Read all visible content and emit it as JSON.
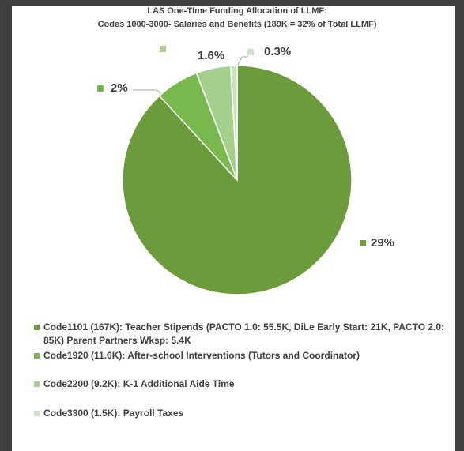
{
  "chart_data": {
    "type": "pie",
    "title": [
      "LAS One-TIme Funding Allocation of LLMF:",
      "Codes 1000-3000- Salaries and Benefits (189K = 32% of Total LLMF)"
    ],
    "categories": [
      "Code1101 (167K): Teacher Stipends (PACTO 1.0: 55.5K, DiLe Early Start: 21K, PACTO 2.0: 85K) Parent Partners Wksp: 5.4K",
      "Code1920 (11.6K): After-school Interventions (Tutors and Coordinator)",
      "Code2200 (9.2K): K-1 Additional Aide Time",
      "Code3300 (1.5K): Payroll Taxes"
    ],
    "values": [
      29,
      2,
      1.6,
      0.3
    ],
    "value_labels": [
      "29%",
      "2%",
      "1.6%",
      "0.3%"
    ],
    "colors": [
      "#6b9b3a",
      "#79b84c",
      "#a5cf8d",
      "#cbe4bb"
    ],
    "legend": "bottom"
  }
}
